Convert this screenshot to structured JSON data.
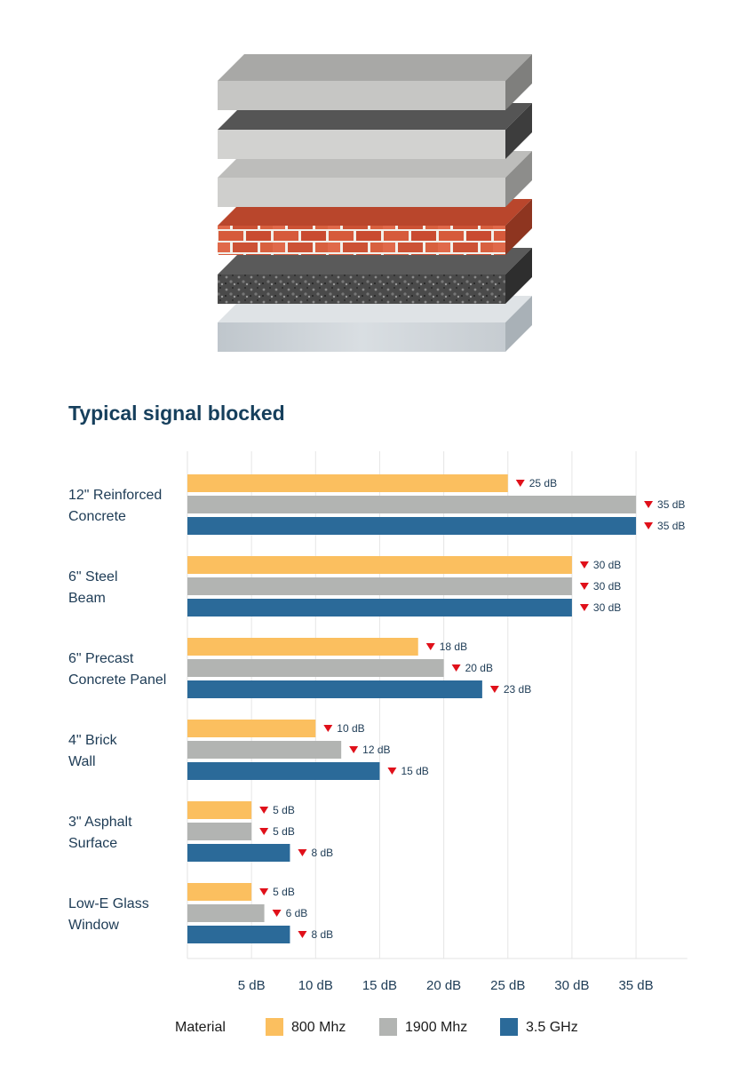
{
  "chart_data": {
    "type": "bar",
    "orientation": "horizontal",
    "title": "Typical signal blocked",
    "categories": [
      [
        "12\" Reinforced",
        "Concrete"
      ],
      [
        "6\" Steel",
        "Beam"
      ],
      [
        "6\" Precast",
        "Concrete Panel"
      ],
      [
        "4\" Brick",
        "Wall"
      ],
      [
        "3\" Asphalt",
        "Surface"
      ],
      [
        "Low-E Glass",
        "Window"
      ]
    ],
    "series": [
      {
        "name": "800 Mhz",
        "color": "#fbbf5f",
        "values": [
          25,
          30,
          18,
          10,
          5,
          5
        ]
      },
      {
        "name": "1900 Mhz",
        "color": "#b2b4b2",
        "values": [
          35,
          30,
          20,
          12,
          5,
          6
        ]
      },
      {
        "name": "3.5 GHz",
        "color": "#2b6a99",
        "values": [
          35,
          30,
          23,
          15,
          8,
          8
        ]
      }
    ],
    "value_suffix": " dB",
    "marker_color": "#e0101a",
    "xlim": [
      0,
      39
    ],
    "xticks": [
      5,
      10,
      15,
      20,
      25,
      30,
      35
    ],
    "xtick_labels": [
      "5 dB",
      "10 dB",
      "15 dB",
      "20 dB",
      "25 dB",
      "30 dB",
      "35 dB"
    ],
    "grid": true,
    "legend": {
      "title": "Material",
      "position": "bottom"
    }
  }
}
